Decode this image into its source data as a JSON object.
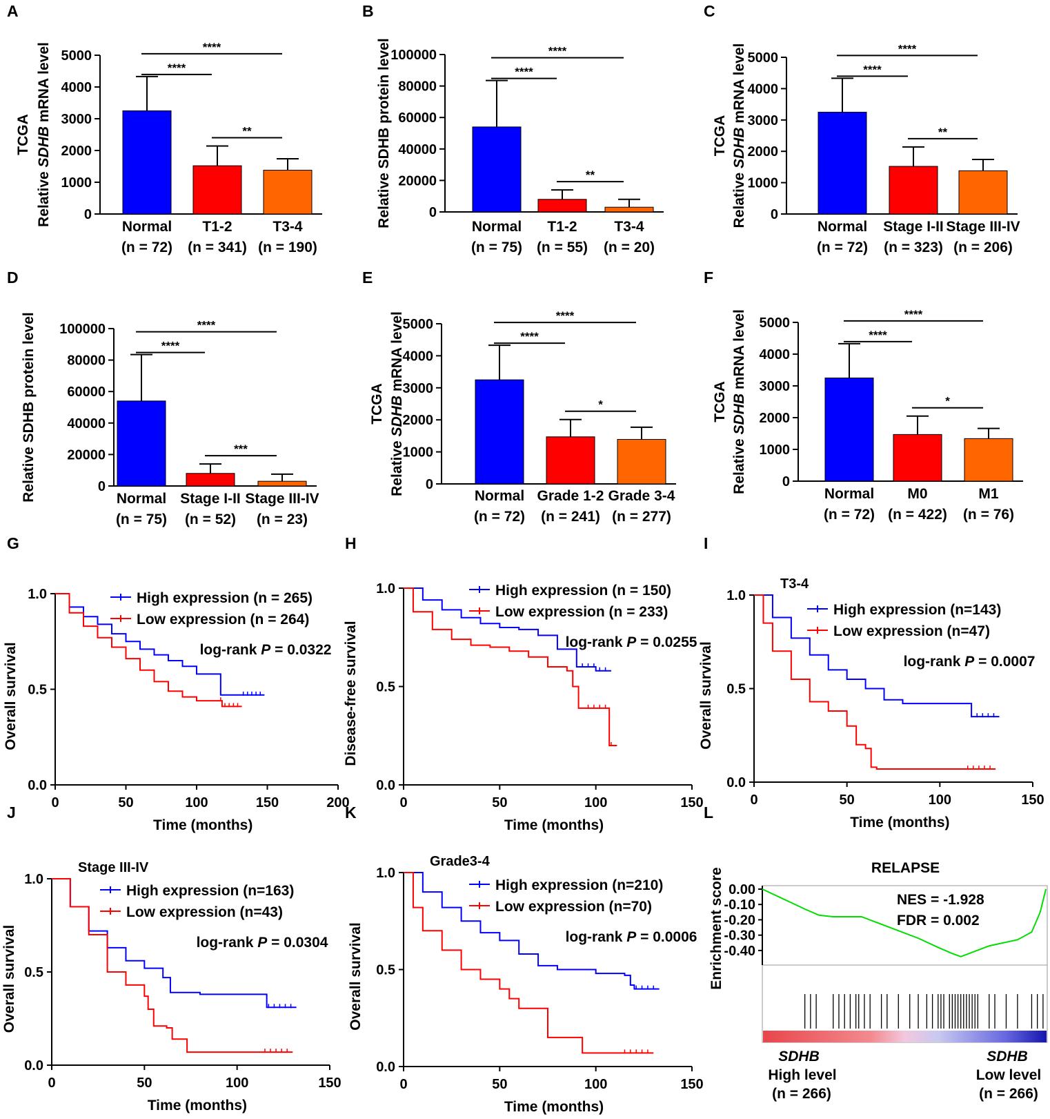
{
  "colors": {
    "normal": "#0000ff",
    "mid": "#ff0000",
    "late": "#ff6600",
    "high": "#0000ff",
    "low": "#ff0000",
    "gsea": "#00dd00"
  },
  "chart_data": [
    {
      "id": "A",
      "type": "bar",
      "ylabel": [
        "TCGA",
        "Relative |SDHB| mRNA level"
      ],
      "ylim": [
        0,
        5000
      ],
      "yticks": [
        0,
        1000,
        2000,
        3000,
        4000,
        5000
      ],
      "categories": [
        "Normal",
        "T1-2",
        "T3-4"
      ],
      "ns": [
        "(n = 72)",
        "(n = 341)",
        "(n = 190)"
      ],
      "values": [
        3250,
        1520,
        1380
      ],
      "errors": [
        1080,
        620,
        360
      ],
      "significance": [
        {
          "a": 0,
          "b": 1,
          "label": "****"
        },
        {
          "a": 0,
          "b": 2,
          "label": "****"
        },
        {
          "a": 1,
          "b": 2,
          "label": "**"
        }
      ]
    },
    {
      "id": "B",
      "type": "bar",
      "ylabel": [
        "Relative SDHB protein level"
      ],
      "ylim": [
        0,
        100000
      ],
      "yticks": [
        0,
        20000,
        40000,
        60000,
        80000,
        100000
      ],
      "categories": [
        "Normal",
        "T1-2",
        "T3-4"
      ],
      "ns": [
        "(n = 75)",
        "(n = 55)",
        "(n = 20)"
      ],
      "values": [
        54000,
        8000,
        3000
      ],
      "errors": [
        29500,
        6000,
        5000
      ],
      "significance": [
        {
          "a": 0,
          "b": 1,
          "label": "****"
        },
        {
          "a": 0,
          "b": 2,
          "label": "****"
        },
        {
          "a": 1,
          "b": 2,
          "label": "**"
        }
      ]
    },
    {
      "id": "C",
      "type": "bar",
      "ylabel": [
        "TCGA",
        "Relative |SDHB| mRNA level"
      ],
      "ylim": [
        0,
        5000
      ],
      "yticks": [
        0,
        1000,
        2000,
        3000,
        4000,
        5000
      ],
      "categories": [
        "Normal",
        "Stage I-II",
        "Stage III-IV"
      ],
      "ns": [
        "(n = 72)",
        "(n = 323)",
        "(n = 206)"
      ],
      "values": [
        3250,
        1520,
        1380
      ],
      "errors": [
        1080,
        620,
        360
      ],
      "significance": [
        {
          "a": 0,
          "b": 1,
          "label": "****"
        },
        {
          "a": 0,
          "b": 2,
          "label": "****"
        },
        {
          "a": 1,
          "b": 2,
          "label": "**"
        }
      ]
    },
    {
      "id": "D",
      "type": "bar",
      "ylabel": [
        "Relative SDHB protein level"
      ],
      "ylim": [
        0,
        100000
      ],
      "yticks": [
        0,
        20000,
        40000,
        60000,
        80000,
        100000
      ],
      "categories": [
        "Normal",
        "Stage I-II",
        "Stage III-IV"
      ],
      "ns": [
        "(n = 75)",
        "(n = 52)",
        "(n = 23)"
      ],
      "values": [
        54000,
        8000,
        3000
      ],
      "errors": [
        29500,
        6000,
        4500
      ],
      "significance": [
        {
          "a": 0,
          "b": 1,
          "label": "****"
        },
        {
          "a": 0,
          "b": 2,
          "label": "****"
        },
        {
          "a": 1,
          "b": 2,
          "label": "***"
        }
      ]
    },
    {
      "id": "E",
      "type": "bar",
      "ylabel": [
        "TCGA",
        "Relative |SDHB| mRNA level"
      ],
      "ylim": [
        0,
        5000
      ],
      "yticks": [
        0,
        1000,
        2000,
        3000,
        4000,
        5000
      ],
      "categories": [
        "Normal",
        "Grade 1-2",
        "Grade 3-4"
      ],
      "ns": [
        "(n = 72)",
        "(n = 241)",
        "(n = 277)"
      ],
      "values": [
        3250,
        1470,
        1390
      ],
      "errors": [
        1080,
        540,
        380
      ],
      "significance": [
        {
          "a": 0,
          "b": 1,
          "label": "****"
        },
        {
          "a": 0,
          "b": 2,
          "label": "****"
        },
        {
          "a": 1,
          "b": 2,
          "label": "*"
        }
      ]
    },
    {
      "id": "F",
      "type": "bar",
      "ylabel": [
        "TCGA",
        "Relative |SDHB| mRNA level"
      ],
      "ylim": [
        0,
        5000
      ],
      "yticks": [
        0,
        1000,
        2000,
        3000,
        4000,
        5000
      ],
      "categories": [
        "Normal",
        "M0",
        "M1"
      ],
      "ns": [
        "(n = 72)",
        "(n = 422)",
        "(n = 76)"
      ],
      "values": [
        3250,
        1470,
        1340
      ],
      "errors": [
        1080,
        580,
        320
      ],
      "significance": [
        {
          "a": 0,
          "b": 1,
          "label": "****"
        },
        {
          "a": 0,
          "b": 2,
          "label": "****"
        },
        {
          "a": 1,
          "b": 2,
          "label": "*"
        }
      ]
    },
    {
      "id": "G",
      "type": "line",
      "subtitle": "",
      "ylabel": "Overall survival",
      "xlabel": "Time (months)",
      "xlim": [
        0,
        200
      ],
      "xticks": [
        0,
        50,
        100,
        150,
        200
      ],
      "ylim": [
        0,
        1
      ],
      "yticks": [
        "0.0",
        "0.5",
        "1.0"
      ],
      "legend": [
        "High expression (n = 265)",
        "Low expression (n = 264)"
      ],
      "stat": "log-rank |P| = 0.0322",
      "series": [
        {
          "name": "High expression",
          "x": [
            0,
            10,
            20,
            30,
            40,
            50,
            60,
            70,
            80,
            90,
            100,
            117,
            117,
            148
          ],
          "y": [
            1.0,
            0.93,
            0.88,
            0.84,
            0.79,
            0.75,
            0.71,
            0.68,
            0.65,
            0.62,
            0.58,
            0.56,
            0.47,
            0.47
          ]
        },
        {
          "name": "Low expression",
          "x": [
            0,
            10,
            20,
            30,
            40,
            50,
            60,
            70,
            80,
            90,
            100,
            118,
            132
          ],
          "y": [
            1.0,
            0.9,
            0.83,
            0.77,
            0.72,
            0.66,
            0.6,
            0.54,
            0.49,
            0.46,
            0.44,
            0.41,
            0.41
          ]
        }
      ]
    },
    {
      "id": "H",
      "type": "line",
      "subtitle": "",
      "ylabel": "Disease-free survival",
      "xlabel": "Time (months)",
      "xlim": [
        0,
        150
      ],
      "xticks": [
        0,
        50,
        100,
        150
      ],
      "ylim": [
        0,
        1
      ],
      "yticks": [
        "0.0",
        "0.5",
        "1.0"
      ],
      "legend": [
        "High expression (n = 150)",
        "Low expression (n = 233)"
      ],
      "stat": "log-rank |P| = 0.0255",
      "series": [
        {
          "name": "High expression",
          "x": [
            0,
            10,
            20,
            30,
            40,
            50,
            60,
            70,
            80,
            90,
            100,
            108
          ],
          "y": [
            1.0,
            0.94,
            0.89,
            0.85,
            0.82,
            0.8,
            0.79,
            0.76,
            0.69,
            0.6,
            0.58,
            0.58
          ]
        },
        {
          "name": "Low expression",
          "x": [
            0,
            5,
            15,
            25,
            35,
            45,
            55,
            65,
            75,
            85,
            88,
            91,
            105,
            107,
            111
          ],
          "y": [
            1.0,
            0.88,
            0.79,
            0.74,
            0.71,
            0.7,
            0.68,
            0.65,
            0.6,
            0.58,
            0.5,
            0.39,
            0.39,
            0.2,
            0.2
          ]
        }
      ]
    },
    {
      "id": "I",
      "type": "line",
      "subtitle": "T3-4",
      "ylabel": "Overall survival",
      "xlabel": "Time (months)",
      "xlim": [
        0,
        150
      ],
      "xticks": [
        0,
        50,
        100,
        150
      ],
      "ylim": [
        0,
        1
      ],
      "yticks": [
        "0.0",
        "0.5",
        "1.0"
      ],
      "legend": [
        "High expression (n=143)",
        "Low expression (n=47)"
      ],
      "stat": "log-rank |P| = 0.0007",
      "series": [
        {
          "name": "High expression",
          "x": [
            0,
            10,
            20,
            30,
            40,
            50,
            60,
            70,
            80,
            100,
            115,
            117,
            132
          ],
          "y": [
            1.0,
            0.88,
            0.77,
            0.68,
            0.6,
            0.55,
            0.5,
            0.44,
            0.42,
            0.42,
            0.42,
            0.35,
            0.35
          ]
        },
        {
          "name": "Low expression",
          "x": [
            0,
            5,
            10,
            20,
            30,
            40,
            50,
            55,
            60,
            63,
            66,
            130
          ],
          "y": [
            1.0,
            0.85,
            0.7,
            0.55,
            0.43,
            0.38,
            0.3,
            0.2,
            0.18,
            0.08,
            0.07,
            0.07
          ]
        }
      ]
    },
    {
      "id": "J",
      "type": "line",
      "subtitle": "Stage III-IV",
      "ylabel": "Overall survival",
      "xlabel": "Time (months)",
      "xlim": [
        0,
        150
      ],
      "xticks": [
        0,
        50,
        100,
        150
      ],
      "ylim": [
        0,
        1
      ],
      "yticks": [
        "0.0",
        "0.5",
        "1.0"
      ],
      "legend": [
        "High expression (n=163)",
        "Low expression (n=43)"
      ],
      "stat": "log-rank |P| = 0.0304",
      "series": [
        {
          "name": "High expression",
          "x": [
            0,
            10,
            20,
            30,
            40,
            50,
            60,
            64,
            80,
            115,
            116,
            132
          ],
          "y": [
            1.0,
            0.85,
            0.72,
            0.63,
            0.56,
            0.52,
            0.47,
            0.39,
            0.38,
            0.38,
            0.31,
            0.31
          ]
        },
        {
          "name": "Low expression",
          "x": [
            0,
            10,
            20,
            30,
            40,
            50,
            52,
            55,
            62,
            65,
            73,
            130
          ],
          "y": [
            1.0,
            0.85,
            0.7,
            0.5,
            0.43,
            0.37,
            0.3,
            0.21,
            0.2,
            0.14,
            0.07,
            0.07
          ]
        }
      ]
    },
    {
      "id": "K",
      "type": "line",
      "subtitle": "Grade3-4",
      "ylabel": "Overall survival",
      "xlabel": "Time (months)",
      "xlim": [
        0,
        150
      ],
      "xticks": [
        0,
        50,
        100,
        150
      ],
      "ylim": [
        0,
        1
      ],
      "yticks": [
        "0.0",
        "0.5",
        "1.0"
      ],
      "legend": [
        "High expression (n=210)",
        "Low expression (n=70)"
      ],
      "stat": "log-rank |P| = 0.0006",
      "series": [
        {
          "name": "High expression",
          "x": [
            0,
            10,
            20,
            30,
            40,
            50,
            60,
            70,
            80,
            100,
            115,
            118,
            120,
            133
          ],
          "y": [
            1.0,
            0.9,
            0.82,
            0.75,
            0.69,
            0.65,
            0.58,
            0.52,
            0.5,
            0.48,
            0.47,
            0.42,
            0.4,
            0.4
          ]
        },
        {
          "name": "Low expression",
          "x": [
            0,
            5,
            10,
            20,
            30,
            40,
            50,
            55,
            60,
            70,
            75,
            93,
            130
          ],
          "y": [
            1.0,
            0.82,
            0.7,
            0.6,
            0.5,
            0.45,
            0.4,
            0.35,
            0.3,
            0.3,
            0.15,
            0.07,
            0.07
          ]
        }
      ]
    },
    {
      "id": "L",
      "type": "gsea",
      "title": "RELAPSE",
      "ylabel": "Enrichment score",
      "ylim": [
        -0.45,
        0.0
      ],
      "yticks": [
        "0.00",
        "-0.10",
        "-0.20",
        "-0.30",
        "-0.40"
      ],
      "nes": "NES = -1.928",
      "fdr": "FDR = 0.002",
      "left_label": [
        "SDHB",
        "High level",
        "(n = 266)"
      ],
      "right_label": [
        "SDHB",
        "Low level",
        "(n = 266)"
      ],
      "curve": {
        "x": [
          0,
          0.15,
          0.2,
          0.25,
          0.35,
          0.45,
          0.55,
          0.62,
          0.67,
          0.7,
          0.8,
          0.9,
          0.95,
          0.98,
          1.0
        ],
        "y": [
          0.0,
          -0.13,
          -0.17,
          -0.18,
          -0.18,
          -0.25,
          -0.32,
          -0.38,
          -0.42,
          -0.44,
          -0.37,
          -0.33,
          -0.28,
          -0.15,
          0.0
        ]
      },
      "hits": [
        0.15,
        0.17,
        0.19,
        0.25,
        0.27,
        0.29,
        0.31,
        0.33,
        0.34,
        0.36,
        0.38,
        0.42,
        0.44,
        0.48,
        0.52,
        0.55,
        0.58,
        0.6,
        0.62,
        0.63,
        0.64,
        0.66,
        0.67,
        0.68,
        0.69,
        0.7,
        0.71,
        0.72,
        0.73,
        0.74,
        0.75,
        0.76,
        0.8,
        0.82,
        0.86,
        0.9,
        0.95,
        0.97,
        0.99
      ]
    }
  ]
}
